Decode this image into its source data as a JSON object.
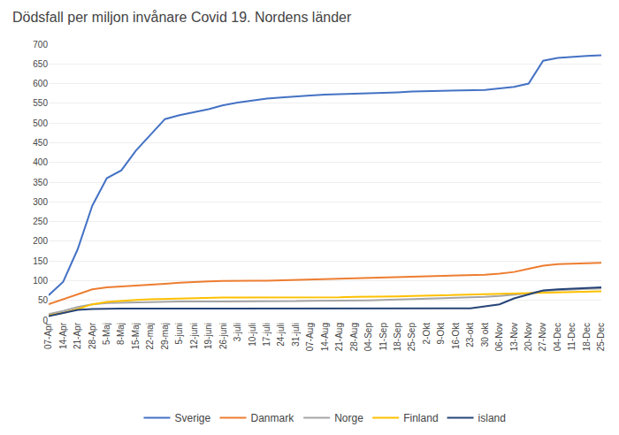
{
  "chart_data": {
    "type": "line",
    "title": "Dödsfall per miljon invånare Covid 19. Nordens länder",
    "categories": [
      "07-Apr",
      "14-Apr",
      "21-Apr",
      "28-Apr",
      "5-Maj",
      "8-Maj",
      "15-Maj",
      "22-maj",
      "29-maj",
      "5-juni",
      "12-juni",
      "19-juni",
      "26-juni",
      "3-juli",
      "10-juli",
      "17-juli",
      "24-juli",
      "31-juli",
      "07-Aug",
      "14-Aug",
      "21-Aug",
      "28-Aug",
      "04-Sep",
      "11-Sep",
      "18-Sep",
      "25-Sep",
      "2-Okt",
      "9-Okt",
      "16-Okt",
      "23-okt",
      "30 okt",
      "06-Nov",
      "13-Nov",
      "20-Nov",
      "27-Nov",
      "04-Dec",
      "11-Dec",
      "18-Dec",
      "25-Dec"
    ],
    "series": [
      {
        "name": "Sverige",
        "color": "#4472C4",
        "values": [
          63,
          97,
          180,
          290,
          360,
          380,
          430,
          470,
          510,
          520,
          528,
          535,
          545,
          552,
          557,
          562,
          565,
          568,
          570,
          572,
          573,
          574,
          575,
          576,
          578,
          580,
          581,
          582,
          582,
          583,
          584,
          588,
          592,
          600,
          658,
          665,
          668,
          670,
          672
        ]
      },
      {
        "name": "Danmark",
        "color": "#ED7D31",
        "values": [
          40,
          53,
          65,
          78,
          83,
          85,
          87,
          90,
          92,
          95,
          97,
          98,
          99,
          100,
          100,
          100,
          101,
          101,
          102,
          103,
          104,
          105,
          106,
          107,
          108,
          109,
          110,
          111,
          112,
          113,
          115,
          118,
          122,
          130,
          138,
          142,
          143,
          144,
          145
        ]
      },
      {
        "name": "Norge",
        "color": "#A5A5A5",
        "values": [
          15,
          23,
          33,
          40,
          43,
          44,
          45,
          46,
          46,
          47,
          47,
          47,
          47,
          47,
          47,
          48,
          48,
          48,
          49,
          49,
          49,
          50,
          50,
          51,
          52,
          53,
          54,
          55,
          56,
          57,
          59,
          61,
          64,
          68,
          74,
          76,
          78,
          79,
          80
        ]
      },
      {
        "name": "Finland",
        "color": "#FFC000",
        "values": [
          12,
          18,
          28,
          40,
          46,
          49,
          51,
          53,
          54,
          55,
          56,
          56,
          57,
          57,
          57,
          57,
          57,
          57,
          58,
          58,
          58,
          59,
          59,
          60,
          60,
          61,
          62,
          63,
          64,
          65,
          65,
          66,
          67,
          68,
          70,
          71,
          72,
          72,
          73
        ]
      },
      {
        "name": "island",
        "color": "#264478",
        "values": [
          10,
          18,
          26,
          28,
          29,
          29,
          29,
          29,
          29,
          29,
          29,
          29,
          29,
          29,
          29,
          29,
          29,
          29,
          29,
          29,
          29,
          29,
          29,
          29,
          29,
          29,
          29,
          29,
          29,
          30,
          35,
          40,
          55,
          65,
          75,
          78,
          80,
          82,
          83
        ]
      }
    ],
    "ylim": [
      0,
      700
    ],
    "yticks": [
      0,
      50,
      100,
      150,
      200,
      250,
      300,
      350,
      400,
      450,
      500,
      550,
      600,
      650,
      700
    ],
    "grid": true,
    "legend": "bottom"
  }
}
